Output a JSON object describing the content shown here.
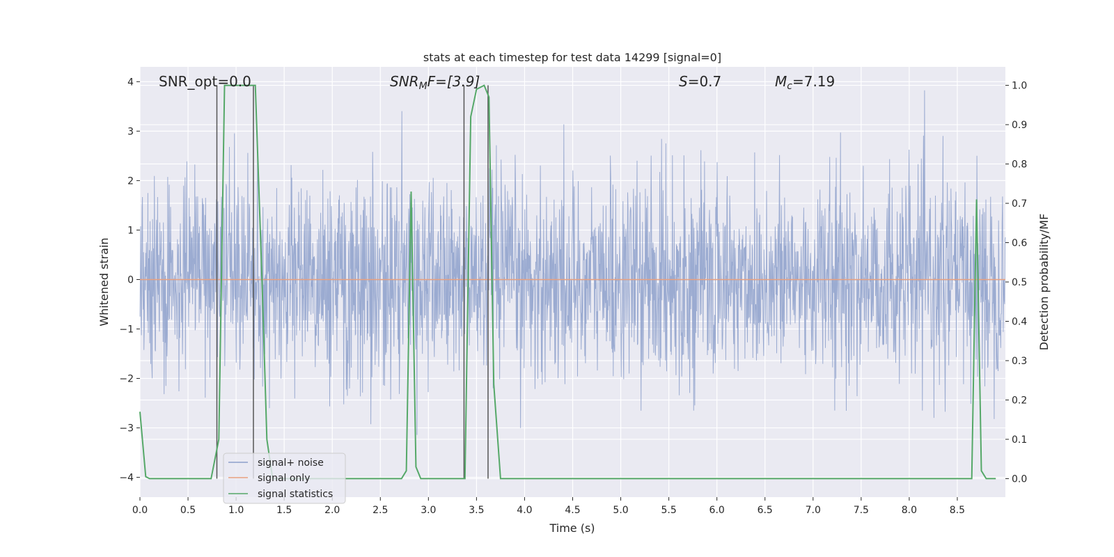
{
  "chart_data": {
    "type": "line",
    "title": "stats at each timestep for test data 14299 [signal=0]",
    "xlabel": "Time (s)",
    "ylabel": "Whitened strain",
    "ylabel_right": "Detection probability/MF",
    "xlim": [
      0,
      9.0
    ],
    "ylim": [
      -4.4,
      4.3
    ],
    "ylim_right": [
      -0.047,
      1.047
    ],
    "xticks": [
      "0.0",
      "0.5",
      "1.0",
      "1.5",
      "2.0",
      "2.5",
      "3.0",
      "3.5",
      "4.0",
      "4.5",
      "5.0",
      "5.5",
      "6.0",
      "6.5",
      "7.0",
      "7.5",
      "8.0",
      "8.5"
    ],
    "yticks": [
      "4",
      "3",
      "2",
      "1",
      "0",
      "−1",
      "−2",
      "−3",
      "−4"
    ],
    "yticks_right": [
      "1.0",
      "0.9",
      "0.8",
      "0.7",
      "0.6",
      "0.5",
      "0.4",
      "0.3",
      "0.2",
      "0.1",
      "0.0"
    ],
    "grid": true,
    "legend_position": "lower-left",
    "annotations": {
      "snr_opt": "SNR_opt=0.0",
      "snr_mf_main": "SNR",
      "snr_mf_sub": "M",
      "snr_mf_rest": "F=[3.9]",
      "s_main": "S",
      "s_rest": "=0.7",
      "mc_main": "M",
      "mc_sub": "c",
      "mc_rest": "=7.19"
    },
    "series": [
      {
        "name": "signal+ noise",
        "color": "#8da0cb",
        "description_note": "dense noise; approx symmetric, envelope ~±2.5 with peaks to ~±3.9"
      },
      {
        "name": "signal only",
        "color": "#e8a07f",
        "y_constant": 0.0
      },
      {
        "name": "signal statistics",
        "color": "#55a868",
        "axis": "right",
        "x": [
          0.0,
          0.06,
          0.1,
          0.2,
          0.5,
          0.74,
          0.82,
          0.88,
          0.95,
          1.2,
          1.27,
          1.32,
          1.38,
          1.5,
          2.0,
          2.5,
          2.72,
          2.77,
          2.82,
          2.87,
          2.92,
          3.0,
          3.3,
          3.38,
          3.44,
          3.5,
          3.58,
          3.63,
          3.68,
          3.75,
          4.0,
          5.0,
          6.0,
          7.0,
          8.0,
          8.6,
          8.65,
          8.7,
          8.75,
          8.8,
          8.9
        ],
        "values": [
          0.17,
          0.005,
          0.0,
          0.0,
          0.0,
          0.0,
          0.1,
          1.0,
          1.0,
          1.0,
          0.5,
          0.1,
          0.0,
          0.0,
          0.0,
          0.0,
          0.0,
          0.02,
          0.73,
          0.03,
          0.0,
          0.0,
          0.0,
          0.0,
          0.92,
          0.99,
          1.0,
          0.97,
          0.24,
          0.0,
          0.0,
          0.0,
          0.0,
          0.0,
          0.0,
          0.0,
          0.0,
          0.71,
          0.02,
          0.0,
          0.0
        ]
      }
    ],
    "vlines": [
      0.8,
      1.18,
      3.37,
      3.62
    ]
  },
  "legend": {
    "items": [
      "signal+ noise",
      "signal only",
      "signal statistics"
    ]
  }
}
